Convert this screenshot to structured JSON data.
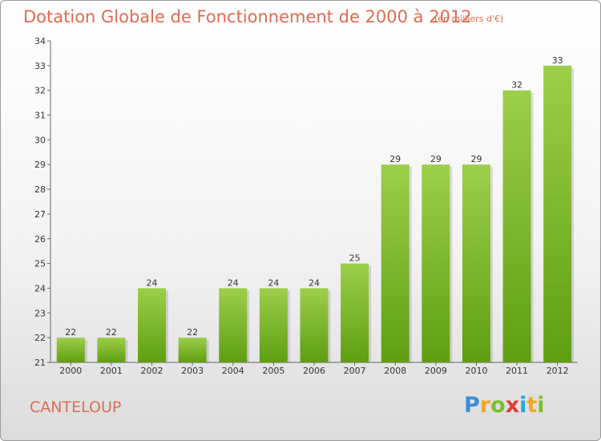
{
  "chart_data": {
    "type": "bar",
    "title": "Dotation Globale de Fonctionnement de 2000 à 2012",
    "subtitle": "(en milliers d'€)",
    "categories": [
      "2000",
      "2001",
      "2002",
      "2003",
      "2004",
      "2005",
      "2006",
      "2007",
      "2008",
      "2009",
      "2010",
      "2011",
      "2012"
    ],
    "values": [
      22,
      22,
      24,
      22,
      24,
      24,
      24,
      25,
      29,
      29,
      29,
      32,
      33
    ],
    "ylim": [
      21,
      34
    ],
    "yticks": [
      21,
      22,
      23,
      24,
      25,
      26,
      27,
      28,
      29,
      30,
      31,
      32,
      33,
      34
    ],
    "xlabel": "",
    "ylabel": "",
    "grid": false,
    "legend": "none"
  },
  "commune": "CANTELOUP",
  "logo": {
    "letters": [
      "P",
      "r",
      "o",
      "x",
      "i",
      "t",
      "i"
    ],
    "colors": [
      "#3a8fd6",
      "#f5a623",
      "#7bbf2a",
      "#e03c31",
      "#2aa5d6",
      "#f5a623",
      "#7bbf2a"
    ]
  },
  "colors": {
    "title": "#e06a52",
    "bar_light": "#9ccf4a",
    "bar_dark": "#5f9e12",
    "axis": "#666666"
  }
}
